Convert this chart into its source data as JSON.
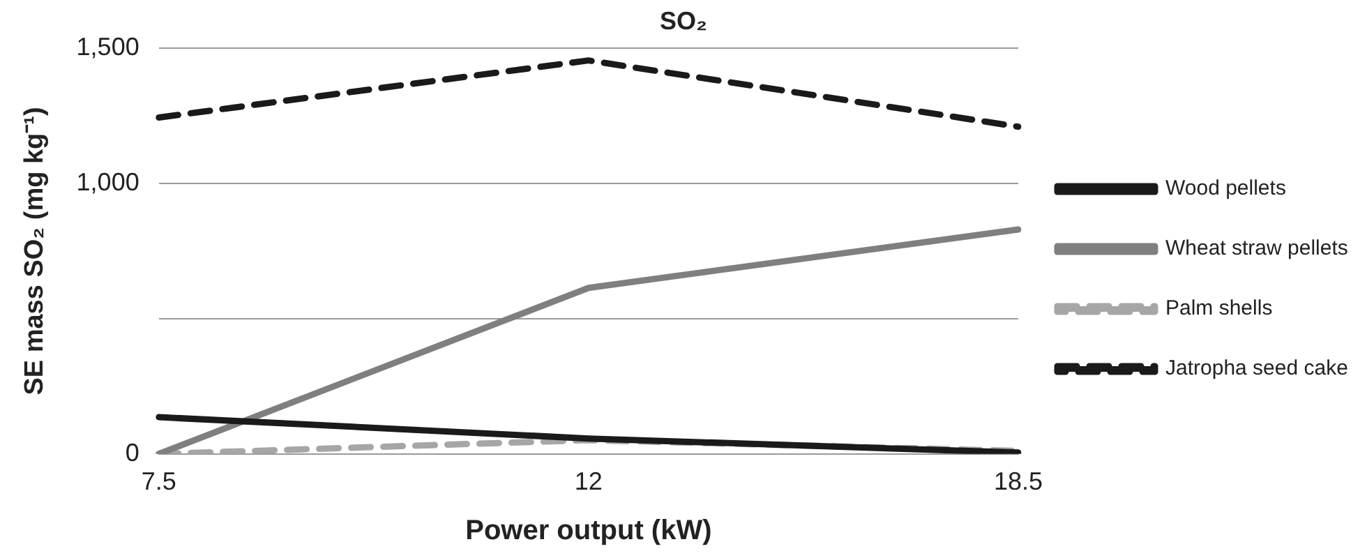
{
  "chart_data": {
    "type": "line",
    "title": "SO₂",
    "xlabel": "Power output (kW)",
    "ylabel": "SE mass SO₂ (mg kg⁻¹)",
    "categories": [
      "7.5",
      "12",
      "18.5"
    ],
    "ylim": [
      0,
      1500
    ],
    "yticks": [
      0,
      {
        "value": 500,
        "label": null
      },
      {
        "value": 1000,
        "label": "1,000"
      },
      {
        "value": 1500,
        "label": "1,500"
      }
    ],
    "grid": "y",
    "legend": "right",
    "marker": "none",
    "series": [
      {
        "name": "Wood pellets",
        "color": "#1a1a1a",
        "line_style": "solid",
        "values": [
          136,
          57,
          5
        ]
      },
      {
        "name": "Wheat straw pellets",
        "color": "#7f7f7f",
        "line_style": "solid",
        "values": [
          0,
          614,
          830
        ]
      },
      {
        "name": "Palm shells",
        "color": "#a6a6a6",
        "line_style": "dashed",
        "values": [
          0,
          51,
          11
        ]
      },
      {
        "name": "Jatropha seed cake",
        "color": "#1a1a1a",
        "line_style": "dashed",
        "values": [
          1244,
          1455,
          1210
        ]
      }
    ]
  }
}
